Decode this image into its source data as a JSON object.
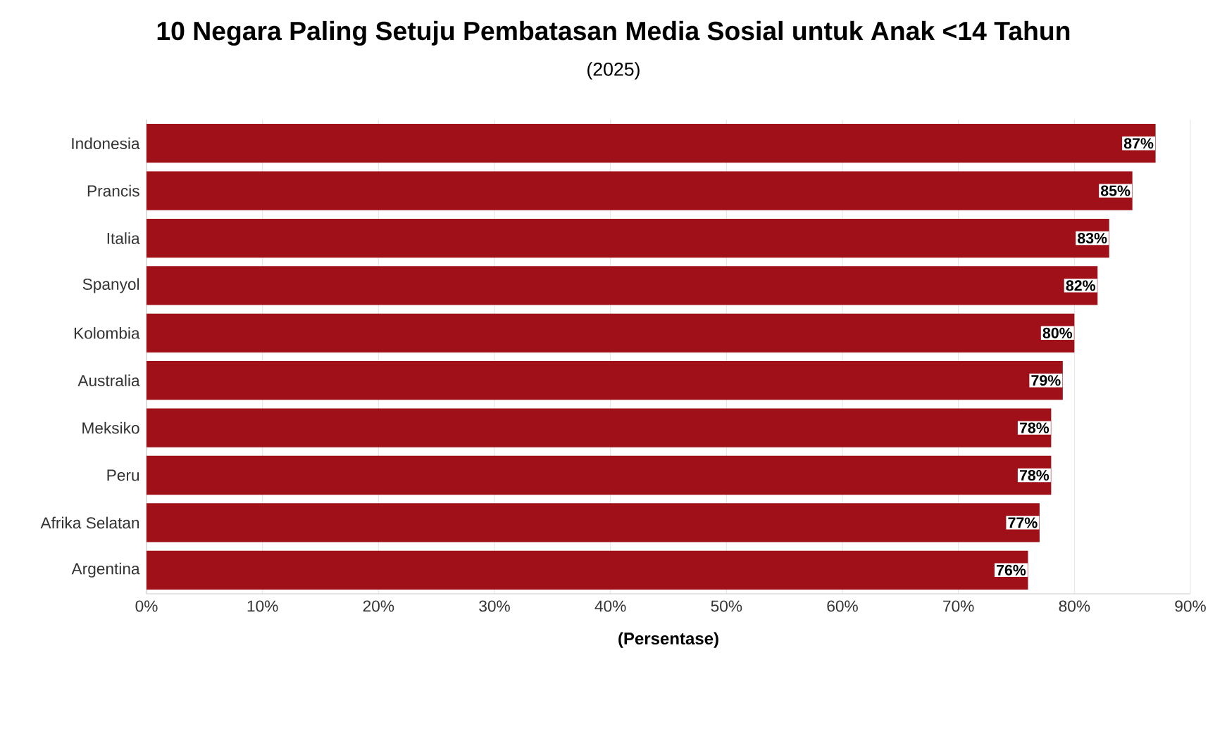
{
  "chart_data": {
    "type": "bar",
    "orientation": "horizontal",
    "title": "10 Negara Paling Setuju Pembatasan Media Sosial untuk Anak <14 Tahun",
    "subtitle": "(2025)",
    "xlabel": "(Persentase)",
    "categories": [
      "Indonesia",
      "Prancis",
      "Italia",
      "Spanyol",
      "Kolombia",
      "Australia",
      "Meksiko",
      "Peru",
      "Afrika Selatan",
      "Argentina"
    ],
    "values": [
      87,
      85,
      83,
      82,
      80,
      79,
      78,
      78,
      77,
      76
    ],
    "value_labels": [
      "87%",
      "85%",
      "83%",
      "82%",
      "80%",
      "79%",
      "78%",
      "78%",
      "77%",
      "76%"
    ],
    "color": "#a01018",
    "xlim": [
      0,
      90
    ],
    "xticks": [
      {
        "value": 0,
        "label": "0%"
      },
      {
        "value": 10,
        "label": "10%"
      },
      {
        "value": 20,
        "label": "20%"
      },
      {
        "value": 30,
        "label": "30%"
      },
      {
        "value": 40,
        "label": "40%"
      },
      {
        "value": 50,
        "label": "50%"
      },
      {
        "value": 60,
        "label": "60%"
      },
      {
        "value": 70,
        "label": "70%"
      },
      {
        "value": 80,
        "label": "80%"
      },
      {
        "value": 90,
        "label": "90%"
      }
    ],
    "grid": "x"
  }
}
